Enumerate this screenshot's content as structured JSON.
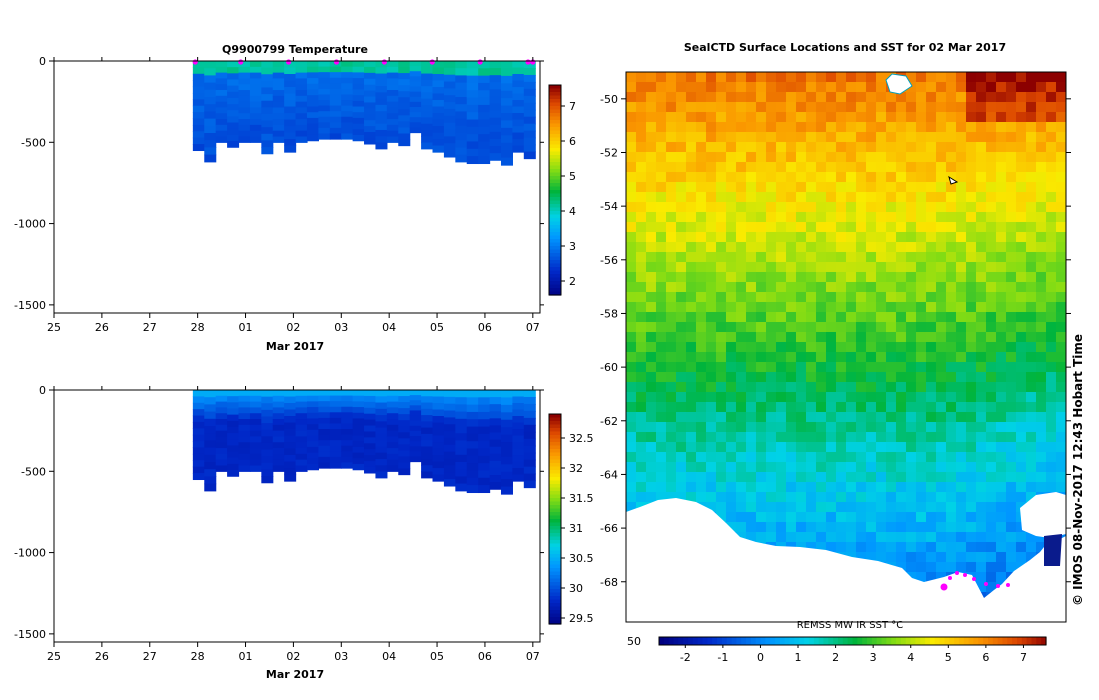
{
  "colors": {
    "background": "#ffffff",
    "axis": "#000000",
    "track_marker": "#ff00ff",
    "land": "#ffffff"
  },
  "chart_data": [
    {
      "type": "heatmap",
      "title": "Q9900799  Temperature",
      "xlabel": "Mar 2017",
      "x_ticks": [
        "25",
        "26",
        "27",
        "28",
        "01",
        "02",
        "03",
        "04",
        "05",
        "06",
        "07"
      ],
      "y_ticks": [
        "0",
        "-500",
        "-1000",
        "-1500"
      ],
      "ylim": [
        -1550,
        0
      ],
      "colorbar_ticks": [
        "7",
        "6",
        "5",
        "4",
        "3",
        "2"
      ],
      "colorbar_range": [
        1.6,
        7.6
      ],
      "profile_start_day": 2.9,
      "profile_end_day": 10.05,
      "profile_max_depth": [
        550,
        620,
        500,
        530,
        500,
        500,
        570,
        500,
        560,
        500,
        490,
        480,
        480,
        480,
        490,
        510,
        540,
        500,
        520,
        440,
        540,
        560,
        590,
        620,
        630,
        630,
        610,
        640,
        560,
        600
      ],
      "surface_value": 4.2,
      "deep_value": 2.6,
      "profile_markers_days": [
        2.95,
        3.9,
        4.9,
        5.9,
        6.9,
        7.9,
        8.9,
        9.9,
        10.0
      ]
    },
    {
      "type": "heatmap",
      "title": "",
      "xlabel": "Mar 2017",
      "x_ticks": [
        "25",
        "26",
        "27",
        "28",
        "01",
        "02",
        "03",
        "04",
        "05",
        "06",
        "07"
      ],
      "y_ticks": [
        "0",
        "-500",
        "-1000",
        "-1500"
      ],
      "ylim": [
        -1550,
        0
      ],
      "colorbar_ticks": [
        "32.5",
        "32",
        "31.5",
        "31",
        "30.5",
        "30",
        "29.5"
      ],
      "colorbar_range": [
        29.4,
        32.9
      ],
      "profile_start_day": 2.9,
      "profile_end_day": 10.05,
      "surface_value": 30.4,
      "deep_value": 29.8
    },
    {
      "type": "heatmap",
      "title": "SealCTD Surface Locations and SST for 02 Mar 2017",
      "y_ticks": [
        "-50",
        "-52",
        "-54",
        "-56",
        "-58",
        "-60",
        "-62",
        "-64",
        "-66",
        "-68"
      ],
      "ylim": [
        -69.5,
        -49
      ],
      "colorbar_label": "REMSS MW IR SST °C",
      "colorbar_ticks": [
        "-2",
        "-1",
        "0",
        "1",
        "2",
        "3",
        "4",
        "5",
        "6",
        "7"
      ],
      "colorbar_range": [
        -2.7,
        7.6
      ],
      "left_tick_label": "50",
      "sst_north": 6.2,
      "sst_south": -0.5,
      "track_points": [
        [
          -68.5
        ],
        [
          -68.2
        ],
        [
          -68.1
        ],
        [
          -68.2
        ],
        [
          -68.4
        ],
        [
          -68.5
        ]
      ],
      "credit": "©  IMOS 08-Nov-2017 12:43 Hobart Time"
    }
  ]
}
